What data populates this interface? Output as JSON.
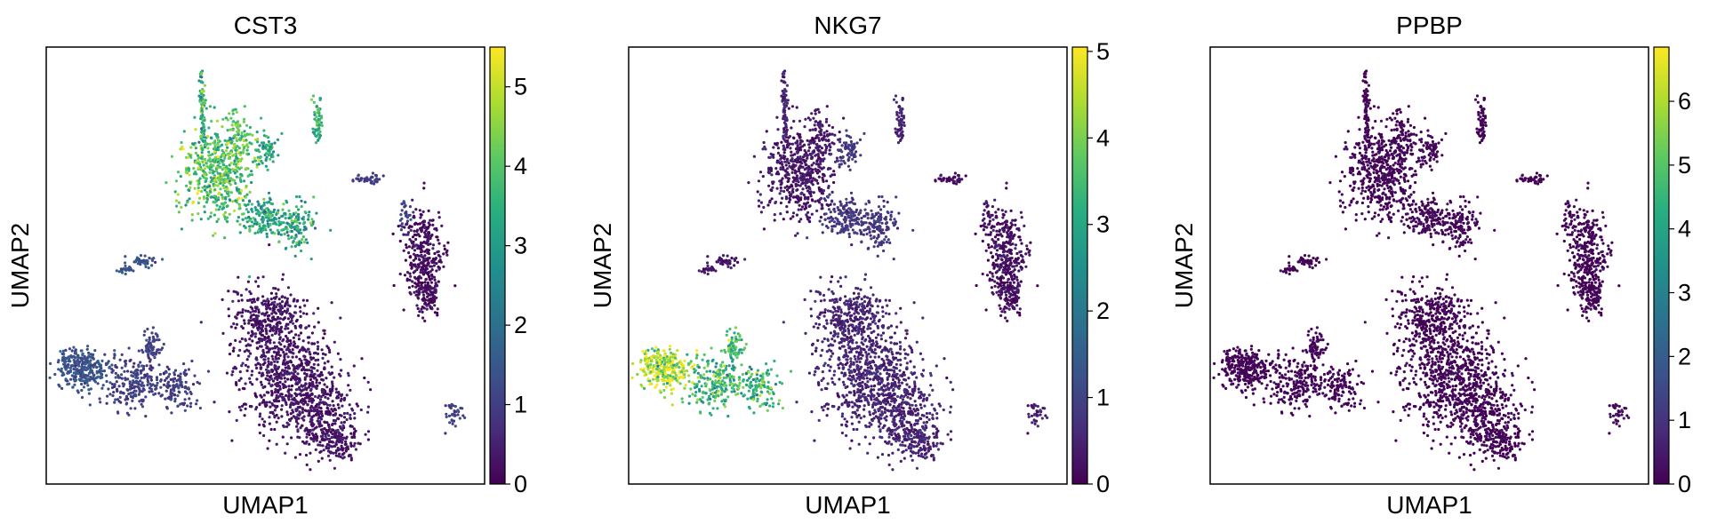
{
  "chart_data": [
    {
      "type": "scatter",
      "title": "CST3",
      "xlabel": "UMAP1",
      "ylabel": "UMAP2",
      "colorbar": {
        "min": 0,
        "max": 5.5,
        "ticks": [
          0,
          1,
          2,
          3,
          4,
          5
        ],
        "colormap": "viridis"
      },
      "cluster_values": {
        "upper_myeloid": 3.9,
        "upper_bridge": 3.2,
        "upper_spike": 3.6,
        "upper_small_right": 1.0,
        "right_b_cells": 0.2,
        "left_small_arm": 1.4,
        "left_nk_blob": 1.4,
        "left_mid_blob": 1.0,
        "main_t_cells": 0.3,
        "small_bottom_right": 1.0
      }
    },
    {
      "type": "scatter",
      "title": "NKG7",
      "xlabel": "UMAP1",
      "ylabel": "UMAP2",
      "colorbar": {
        "min": 0,
        "max": 5.05,
        "ticks": [
          0,
          1,
          2,
          3,
          4,
          5
        ],
        "colormap": "viridis"
      },
      "cluster_values": {
        "upper_myeloid": 0.3,
        "upper_bridge": 0.8,
        "upper_spike": 0.5,
        "upper_small_right": 0.2,
        "right_b_cells": 0.2,
        "left_small_arm": 0.3,
        "left_nk_blob": 4.5,
        "left_mid_blob": 3.3,
        "main_t_cells": 0.5,
        "small_bottom_right": 0.4
      }
    },
    {
      "type": "scatter",
      "title": "PPBP",
      "xlabel": "UMAP1",
      "ylabel": "UMAP2",
      "colorbar": {
        "min": 0,
        "max": 6.85,
        "ticks": [
          0,
          1,
          2,
          3,
          4,
          5,
          6
        ],
        "colormap": "viridis"
      },
      "cluster_values": {
        "upper_myeloid": 0.05,
        "upper_bridge": 0.1,
        "upper_spike": 0.05,
        "upper_small_right": 0.05,
        "right_b_cells": 0.05,
        "left_small_arm": 0.05,
        "left_nk_blob": 0.05,
        "left_mid_blob": 0.05,
        "main_t_cells": 0.05,
        "small_bottom_right": 0.2
      }
    }
  ]
}
